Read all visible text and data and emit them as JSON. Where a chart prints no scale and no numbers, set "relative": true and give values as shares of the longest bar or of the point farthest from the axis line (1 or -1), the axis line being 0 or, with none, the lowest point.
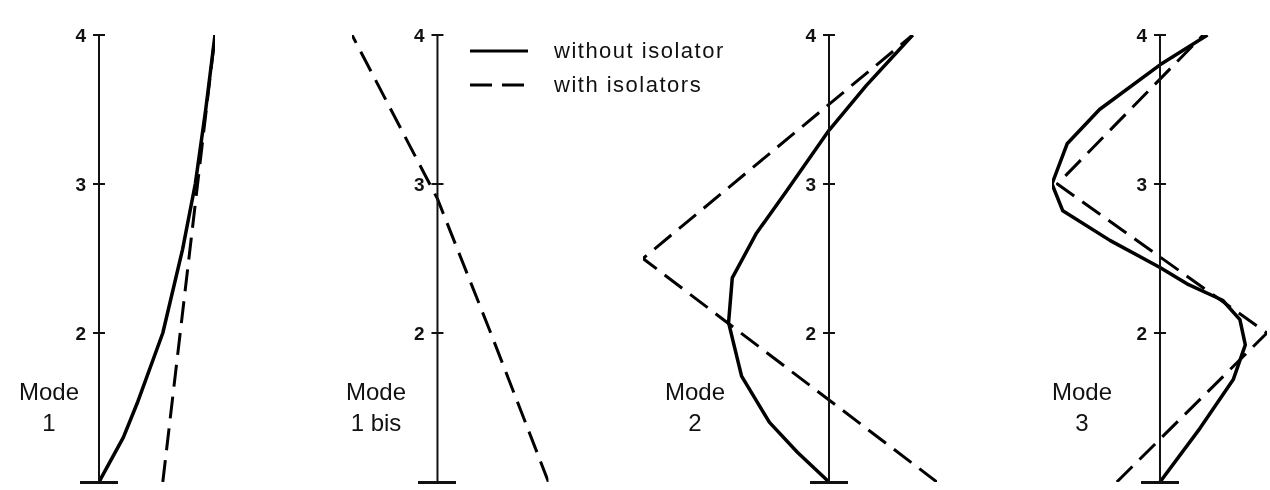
{
  "chart_data": [
    {
      "type": "line",
      "title": "Mode 1",
      "orientation": "horizontal",
      "relative": true,
      "ylim": [
        1,
        4
      ],
      "yticks": [
        2,
        3,
        4
      ],
      "tick_labels": "y",
      "series": [
        {
          "color": "#000000",
          "line_style": "solid",
          "x": [
            1,
            1.3,
            1.53,
            2,
            2.56,
            3,
            3.5,
            4
          ],
          "values": [
            0,
            0.21,
            0.33,
            0.55,
            0.72,
            0.83,
            0.92,
            1
          ]
        },
        {
          "color": "#000000",
          "line_style": "dashed",
          "x": [
            1,
            4
          ],
          "values": [
            0.55,
            1
          ]
        }
      ]
    },
    {
      "type": "line",
      "title": "Mode 1 bis",
      "orientation": "horizontal",
      "relative": true,
      "ylim": [
        1,
        4
      ],
      "yticks": [
        2,
        3,
        4
      ],
      "tick_labels": "y",
      "series": [
        {
          "color": "#000000",
          "line_style": "dashed",
          "x": [
            1,
            2,
            2.9,
            4
          ],
          "values": [
            1,
            0.48,
            0,
            -0.77
          ]
        }
      ]
    },
    {
      "type": "line",
      "title": "Mode 2",
      "orientation": "horizontal",
      "relative": true,
      "ylim": [
        1,
        4
      ],
      "yticks": [
        2,
        3,
        4
      ],
      "tick_labels": "y",
      "legend": "top left",
      "series": [
        {
          "name": "without isolator",
          "color": "#000000",
          "line_style": "solid",
          "x": [
            1,
            1.2,
            1.4,
            1.71,
            2.07,
            2.37,
            2.67,
            2.95,
            3.36,
            3.66,
            4
          ],
          "values": [
            0,
            -0.17,
            -0.32,
            -0.47,
            -0.54,
            -0.52,
            -0.39,
            -0.23,
            0,
            0.2,
            0.45
          ]
        },
        {
          "name": "with isolators",
          "color": "#000000",
          "line_style": "dashed",
          "x": [
            1,
            2.5,
            4
          ],
          "values": [
            0.58,
            -1,
            0.45
          ]
        }
      ]
    },
    {
      "type": "line",
      "title": "Mode 3",
      "orientation": "horizontal",
      "relative": true,
      "ylim": [
        1,
        4
      ],
      "yticks": [
        2,
        3,
        4
      ],
      "tick_labels": "y",
      "series": [
        {
          "color": "#000000",
          "line_style": "solid",
          "x": [
            1,
            1.36,
            1.69,
            1.92,
            2.09,
            2.22,
            2.33,
            2.44,
            2.62,
            2.82,
            3,
            3.27,
            3.5,
            3.8,
            4
          ],
          "values": [
            0,
            0.37,
            0.68,
            0.79,
            0.74,
            0.58,
            0.25,
            0,
            -0.46,
            -0.9,
            -1,
            -0.86,
            -0.56,
            0,
            0.44
          ]
        },
        {
          "color": "#000000",
          "line_style": "dashed",
          "x": [
            1,
            2,
            3,
            4
          ],
          "values": [
            -0.4,
            0.99,
            -0.95,
            0.4
          ]
        }
      ]
    }
  ]
}
